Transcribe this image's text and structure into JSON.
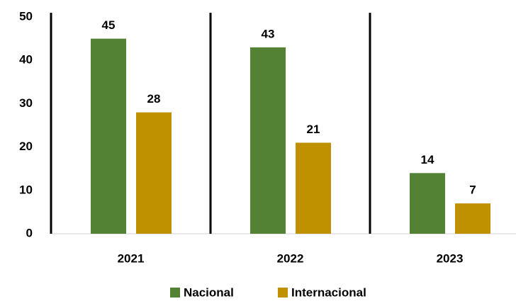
{
  "chart_data": {
    "type": "bar",
    "categories": [
      "2021",
      "2022",
      "2023"
    ],
    "series": [
      {
        "name": "Nacional",
        "color": "#548235",
        "values": [
          45,
          43,
          14
        ]
      },
      {
        "name": "Internacional",
        "color": "#bf9000",
        "values": [
          28,
          21,
          7
        ]
      }
    ],
    "ylim": [
      0,
      50
    ],
    "yticks": [
      0,
      10,
      20,
      30,
      40,
      50
    ],
    "grid": false,
    "legend": "bottom"
  }
}
